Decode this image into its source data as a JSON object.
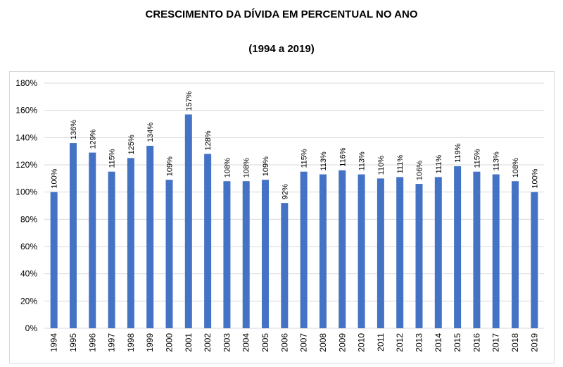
{
  "header": {
    "title": "CRESCIMENTO DA DÍVIDA EM PERCENTUAL NO ANO",
    "subtitle": "(1994 a 2019)"
  },
  "chart_data": {
    "type": "bar",
    "title": "CRESCIMENTO DA DÍVIDA EM PERCENTUAL NO ANO",
    "subtitle": "(1994 a 2019)",
    "categories": [
      "1994",
      "1995",
      "1996",
      "1997",
      "1998",
      "1999",
      "2000",
      "2001",
      "2002",
      "2003",
      "2004",
      "2005",
      "2006",
      "2007",
      "2008",
      "2009",
      "2010",
      "2011",
      "2012",
      "2013",
      "2014",
      "2015",
      "2016",
      "2017",
      "2018",
      "2019"
    ],
    "values": [
      100,
      136,
      129,
      115,
      125,
      134,
      109,
      157,
      128,
      108,
      108,
      109,
      92,
      115,
      113,
      116,
      113,
      110,
      111,
      106,
      111,
      119,
      115,
      113,
      108,
      100
    ],
    "data_labels": [
      "100%",
      "136%",
      "129%",
      "115%",
      "125%",
      "134%",
      "109%",
      "157%",
      "128%",
      "108%",
      "108%",
      "109%",
      "92%",
      "115%",
      "113%",
      "116%",
      "113%",
      "110%",
      "111%",
      "106%",
      "111%",
      "119%",
      "115%",
      "113%",
      "108%",
      "100%"
    ],
    "y_ticks": [
      "0%",
      "20%",
      "40%",
      "60%",
      "80%",
      "100%",
      "120%",
      "140%",
      "160%",
      "180%"
    ],
    "ylim": [
      0,
      180
    ],
    "grid": true,
    "legend": "none",
    "bar_color": "#4472c4",
    "grid_color": "#d9d9d9"
  }
}
